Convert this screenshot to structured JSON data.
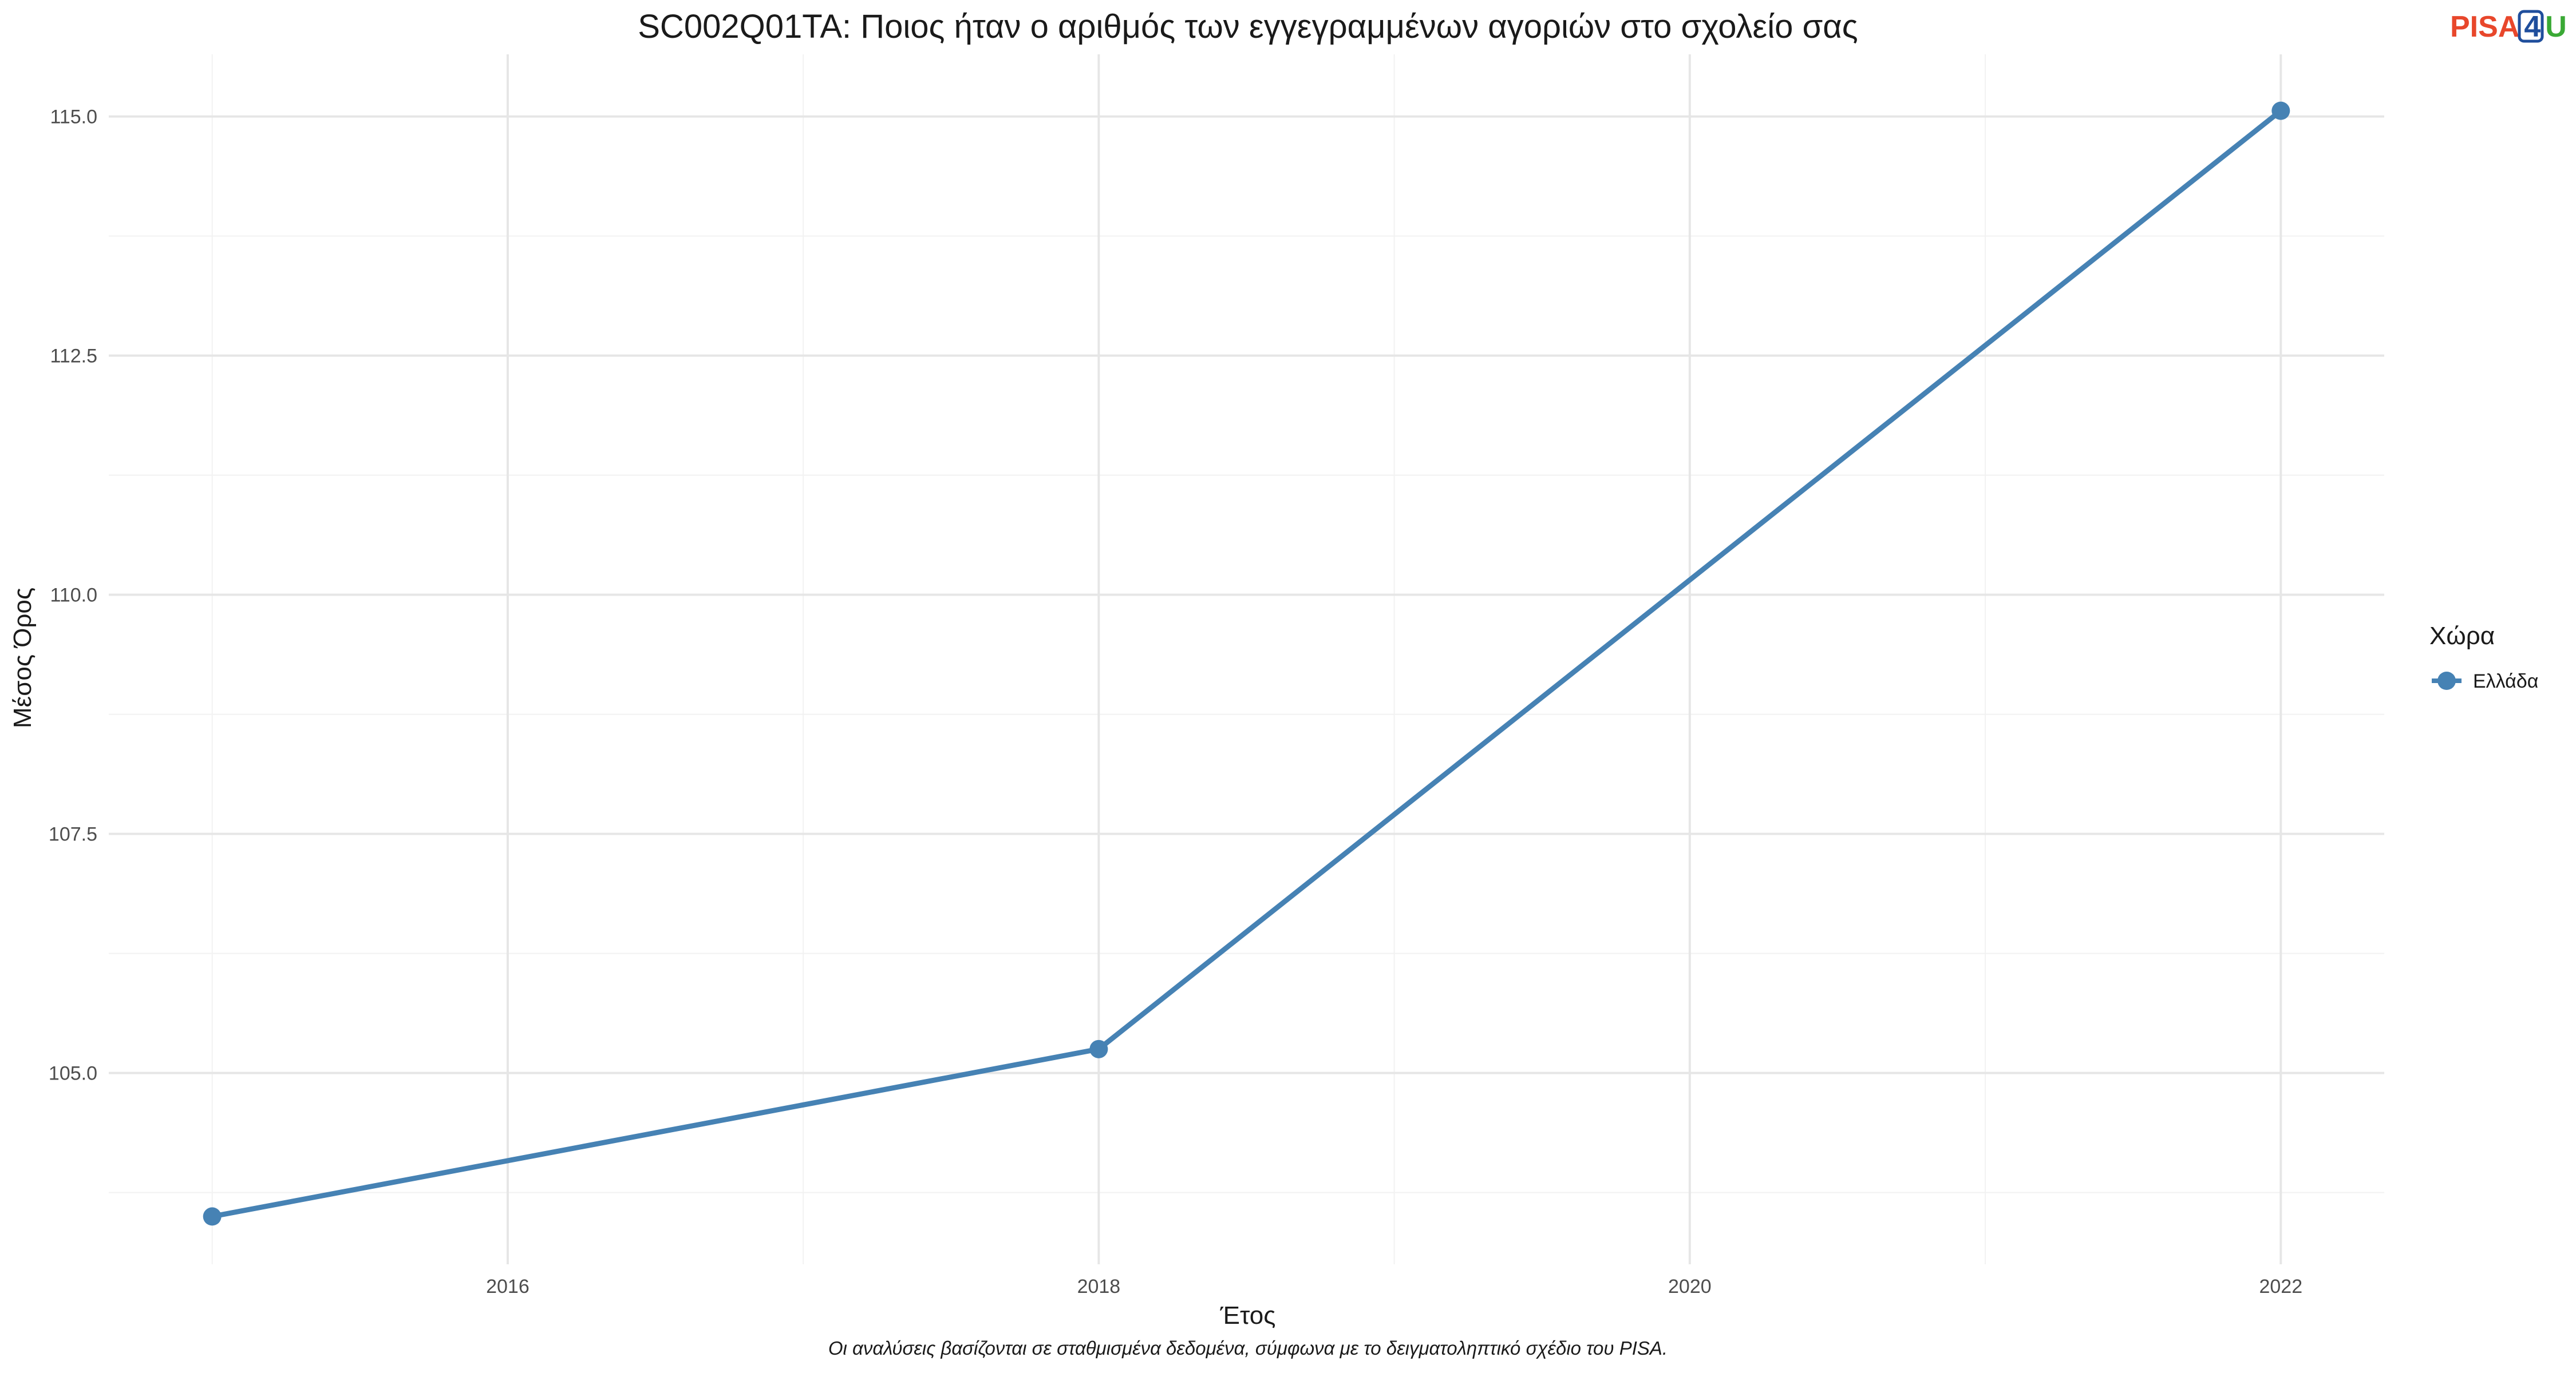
{
  "chart_data": {
    "type": "line",
    "title": "SC002Q01TA: Ποιος ήταν ο αριθμός των εγγεγραμμένων αγοριών στο σχολείο σας",
    "xlabel": "Έτος",
    "ylabel": "Μέσος Όρος",
    "caption": "Οι αναλύσεις βασίζονται σε σταθμισμένα δεδομένα, σύμφωνα με το δειγματοληπτικό σχέδιο του PISA.",
    "x_ticks": [
      2016,
      2018,
      2020,
      2022
    ],
    "y_ticks": [
      "105.0",
      "107.5",
      "110.0",
      "112.5",
      "115.0"
    ],
    "xlim": [
      2014.65,
      2022.35
    ],
    "ylim": [
      103.0,
      115.65
    ],
    "grid": true,
    "legend": {
      "title": "Χώρα",
      "position": "right"
    },
    "series": [
      {
        "name": "Ελλάδα",
        "color": "#4682B4",
        "x": [
          2015,
          2018,
          2022
        ],
        "values": [
          103.5,
          105.25,
          115.06
        ]
      }
    ]
  },
  "logo": {
    "part1": "PISA",
    "part2": "4",
    "part3": "U"
  }
}
